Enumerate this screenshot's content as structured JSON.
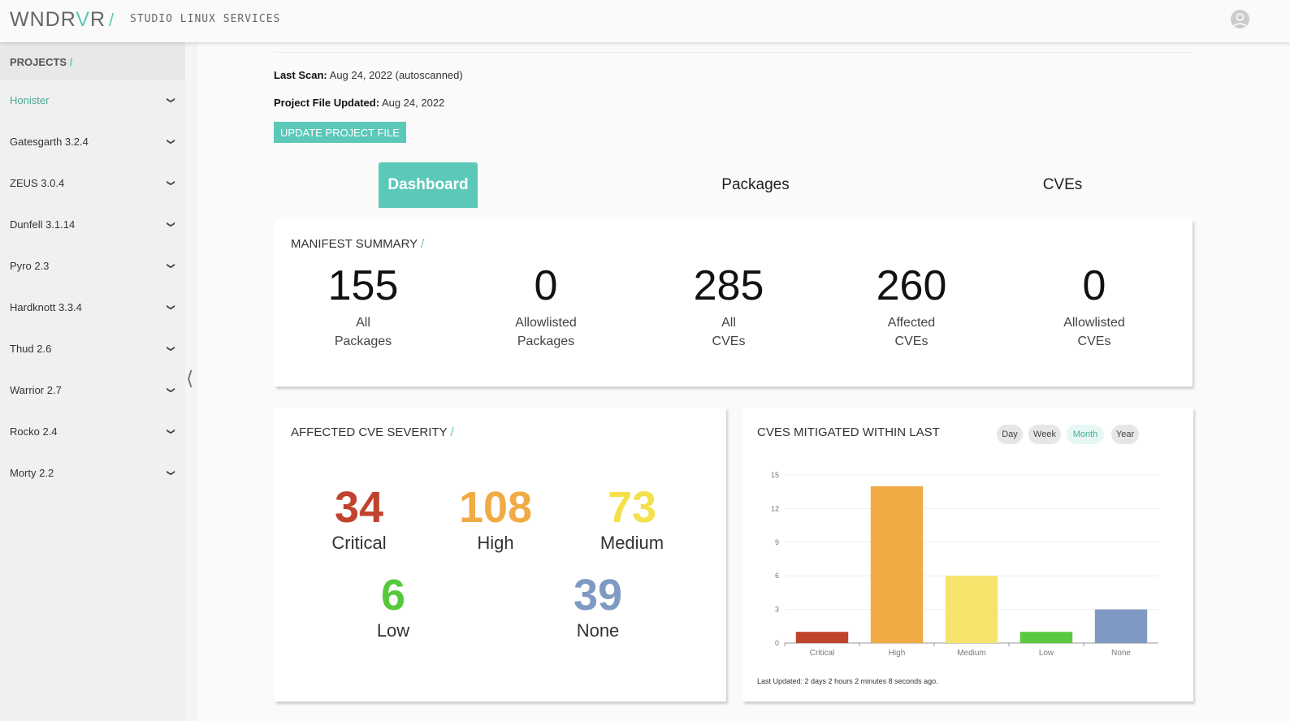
{
  "header": {
    "logo": "WNDRVR",
    "separator": "/",
    "org": "STUDIO LINUX SERVICES"
  },
  "sidebar": {
    "title": "PROJECTS",
    "items": [
      {
        "label": "Honister",
        "active": true
      },
      {
        "label": "Gatesgarth 3.2.4"
      },
      {
        "label": "ZEUS 3.0.4"
      },
      {
        "label": "Dunfell 3.1.14"
      },
      {
        "label": "Pyro 2.3"
      },
      {
        "label": "Hardknott 3.3.4"
      },
      {
        "label": "Thud 2.6"
      },
      {
        "label": "Warrior 2.7"
      },
      {
        "label": "Rocko 2.4"
      },
      {
        "label": "Morty 2.2"
      }
    ]
  },
  "meta": {
    "last_scan_label": "Last Scan:",
    "last_scan": "Aug 24, 2022 (autoscanned)",
    "updated_label": "Project File Updated:",
    "updated": "Aug 24, 2022",
    "update_button": "UPDATE PROJECT FILE"
  },
  "tabs": [
    "Dashboard",
    "Packages",
    "CVEs"
  ],
  "manifest": {
    "title": "MANIFEST SUMMARY",
    "stats": [
      {
        "value": "155",
        "l1": "All",
        "l2": "Packages"
      },
      {
        "value": "0",
        "l1": "Allowlisted",
        "l2": "Packages"
      },
      {
        "value": "285",
        "l1": "All",
        "l2": "CVEs"
      },
      {
        "value": "260",
        "l1": "Affected",
        "l2": "CVEs"
      },
      {
        "value": "0",
        "l1": "Allowlisted",
        "l2": "CVEs"
      }
    ]
  },
  "severity": {
    "title": "AFFECTED CVE SEVERITY",
    "items": [
      {
        "value": "34",
        "label": "Critical",
        "color": "#c0432e"
      },
      {
        "value": "108",
        "label": "High",
        "color": "#f0ab45"
      },
      {
        "value": "73",
        "label": "Medium",
        "color": "#f3e04a"
      },
      {
        "value": "6",
        "label": "Low",
        "color": "#55c83c"
      },
      {
        "value": "39",
        "label": "None",
        "color": "#7f9ac2"
      }
    ]
  },
  "mitigated": {
    "title": "CVES MITIGATED WITHIN LAST",
    "ranges": [
      "Day",
      "Week",
      "Month",
      "Year"
    ],
    "selected_range": "Month",
    "footer": "Last Updated: 2 days 2 hours 2 minutes 8 seconds ago."
  },
  "chart_data": {
    "type": "bar",
    "categories": [
      "Critical",
      "High",
      "Medium",
      "Low",
      "None"
    ],
    "values": [
      1,
      14,
      6,
      1,
      3
    ],
    "colors": [
      "#c0432e",
      "#f0ab45",
      "#f6e36c",
      "#5bc93f",
      "#7f9ac2"
    ],
    "ylim": [
      0,
      15
    ],
    "yticks": [
      0,
      3,
      6,
      9,
      12,
      15
    ],
    "grid": true
  }
}
